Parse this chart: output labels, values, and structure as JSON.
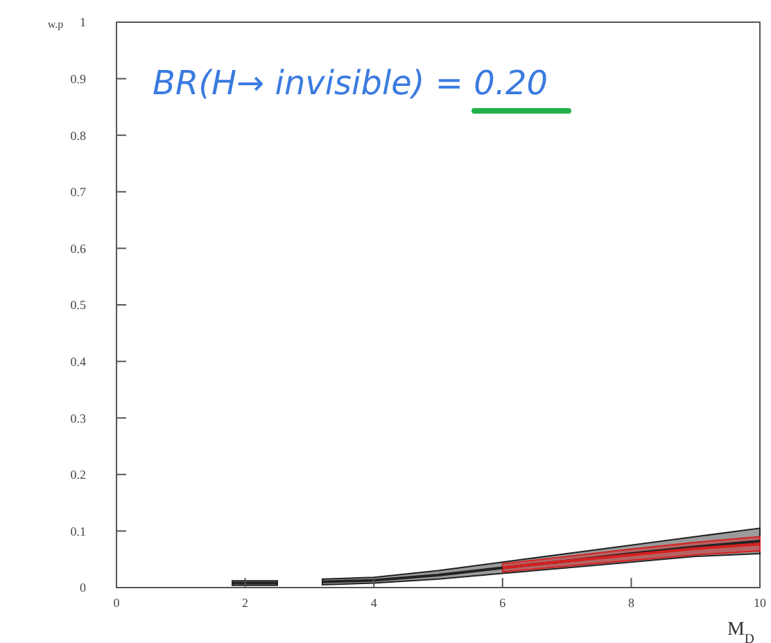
{
  "chart_data": {
    "type": "line",
    "xlabel": "M$_{D}$",
    "ylabel": "w.p",
    "annotations": [
      "BR(H→ invisible) = 0.20"
    ],
    "xlim": [
      0,
      10
    ],
    "ylim": [
      0,
      1
    ],
    "xticks": [
      0,
      2,
      4,
      6,
      8,
      10
    ],
    "yticks": [
      0,
      0.1,
      0.2,
      0.3,
      0.4,
      0.5,
      0.6,
      0.7,
      0.8,
      0.9,
      1
    ],
    "grid": false,
    "series": [
      {
        "color": "#222222",
        "x": [
          1.8,
          2.5,
          2.85,
          3.2,
          4,
          5,
          6,
          7,
          8,
          9,
          10
        ],
        "values": [
          0.008,
          0.008,
          null,
          0.01,
          0.013,
          0.022,
          0.035,
          0.047,
          0.06,
          0.072,
          0.082
        ],
        "lower": [
          0.004,
          0.004,
          null,
          0.005,
          0.008,
          0.015,
          0.025,
          0.035,
          0.045,
          0.055,
          0.06
        ],
        "upper": [
          0.012,
          0.012,
          null,
          0.015,
          0.018,
          0.03,
          0.045,
          0.06,
          0.075,
          0.09,
          0.105
        ]
      },
      {
        "color": "#d62020",
        "x": [
          6,
          7,
          8,
          9,
          10
        ],
        "values": [
          0.035,
          0.047,
          0.058,
          0.069,
          0.077
        ],
        "lower": [
          0.028,
          0.038,
          0.048,
          0.058,
          0.065
        ],
        "upper": [
          0.042,
          0.055,
          0.068,
          0.08,
          0.09
        ]
      }
    ]
  }
}
